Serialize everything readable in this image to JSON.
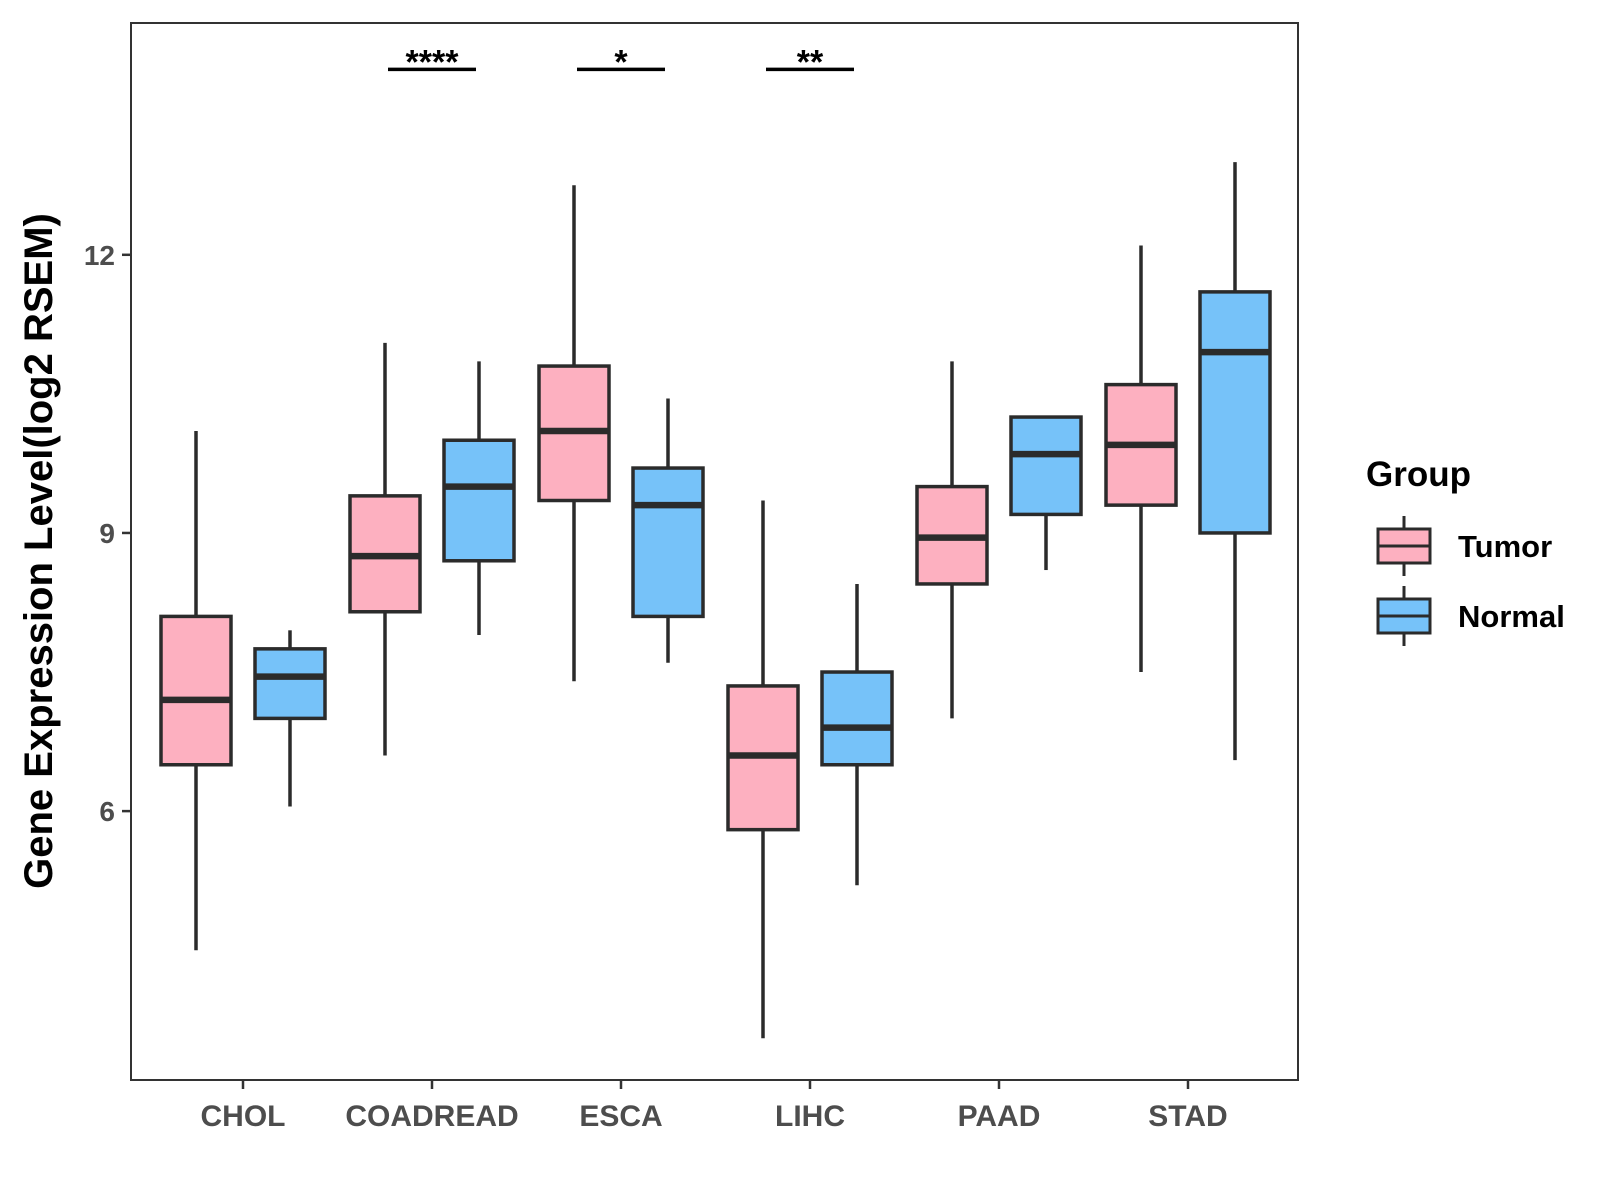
{
  "chart_data": {
    "type": "boxplot",
    "ylabel": "Gene Expression Level(log2 RSEM)",
    "xlabel": "",
    "categories": [
      "CHOL",
      "COADREAD",
      "ESCA",
      "LIHC",
      "PAAD",
      "STAD"
    ],
    "ylim": [
      3.1,
      14.5
    ],
    "yticks": [
      6,
      9,
      12
    ],
    "yticks_text": [
      "6",
      "9",
      "12"
    ],
    "legend": {
      "title": "Group",
      "position": "right",
      "entries": [
        "Tumor",
        "Normal"
      ]
    },
    "series": [
      {
        "name": "Tumor",
        "color": "#FDB0C0",
        "boxes": [
          {
            "min": 4.5,
            "q1": 6.5,
            "median": 7.2,
            "q3": 8.1,
            "max": 10.1
          },
          {
            "min": 6.6,
            "q1": 8.15,
            "median": 8.75,
            "q3": 9.4,
            "max": 11.05
          },
          {
            "min": 7.4,
            "q1": 9.35,
            "median": 10.1,
            "q3": 10.8,
            "max": 12.75
          },
          {
            "min": 3.55,
            "q1": 5.8,
            "median": 6.6,
            "q3": 7.35,
            "max": 9.35
          },
          {
            "min": 7.0,
            "q1": 8.45,
            "median": 8.95,
            "q3": 9.5,
            "max": 10.85
          },
          {
            "min": 7.5,
            "q1": 9.3,
            "median": 9.95,
            "q3": 10.6,
            "max": 12.1
          }
        ]
      },
      {
        "name": "Normal",
        "color": "#76C2F9",
        "boxes": [
          {
            "min": 6.05,
            "q1": 7.0,
            "median": 7.45,
            "q3": 7.75,
            "max": 7.95
          },
          {
            "min": 7.9,
            "q1": 8.7,
            "median": 9.5,
            "q3": 10.0,
            "max": 10.85
          },
          {
            "min": 7.6,
            "q1": 8.1,
            "median": 9.3,
            "q3": 9.7,
            "max": 10.45
          },
          {
            "min": 5.2,
            "q1": 6.5,
            "median": 6.9,
            "q3": 7.5,
            "max": 8.45
          },
          {
            "min": 8.6,
            "q1": 9.2,
            "median": 9.85,
            "q3": 10.25,
            "max": 10.25
          },
          {
            "min": 6.55,
            "q1": 9.0,
            "median": 10.95,
            "q3": 11.6,
            "max": 13.0
          }
        ]
      }
    ],
    "annotations": [
      {
        "category": "COADREAD",
        "label": "****"
      },
      {
        "category": "ESCA",
        "label": "*"
      },
      {
        "category": "LIHC",
        "label": "**"
      }
    ],
    "annotation_y": 14.0
  }
}
